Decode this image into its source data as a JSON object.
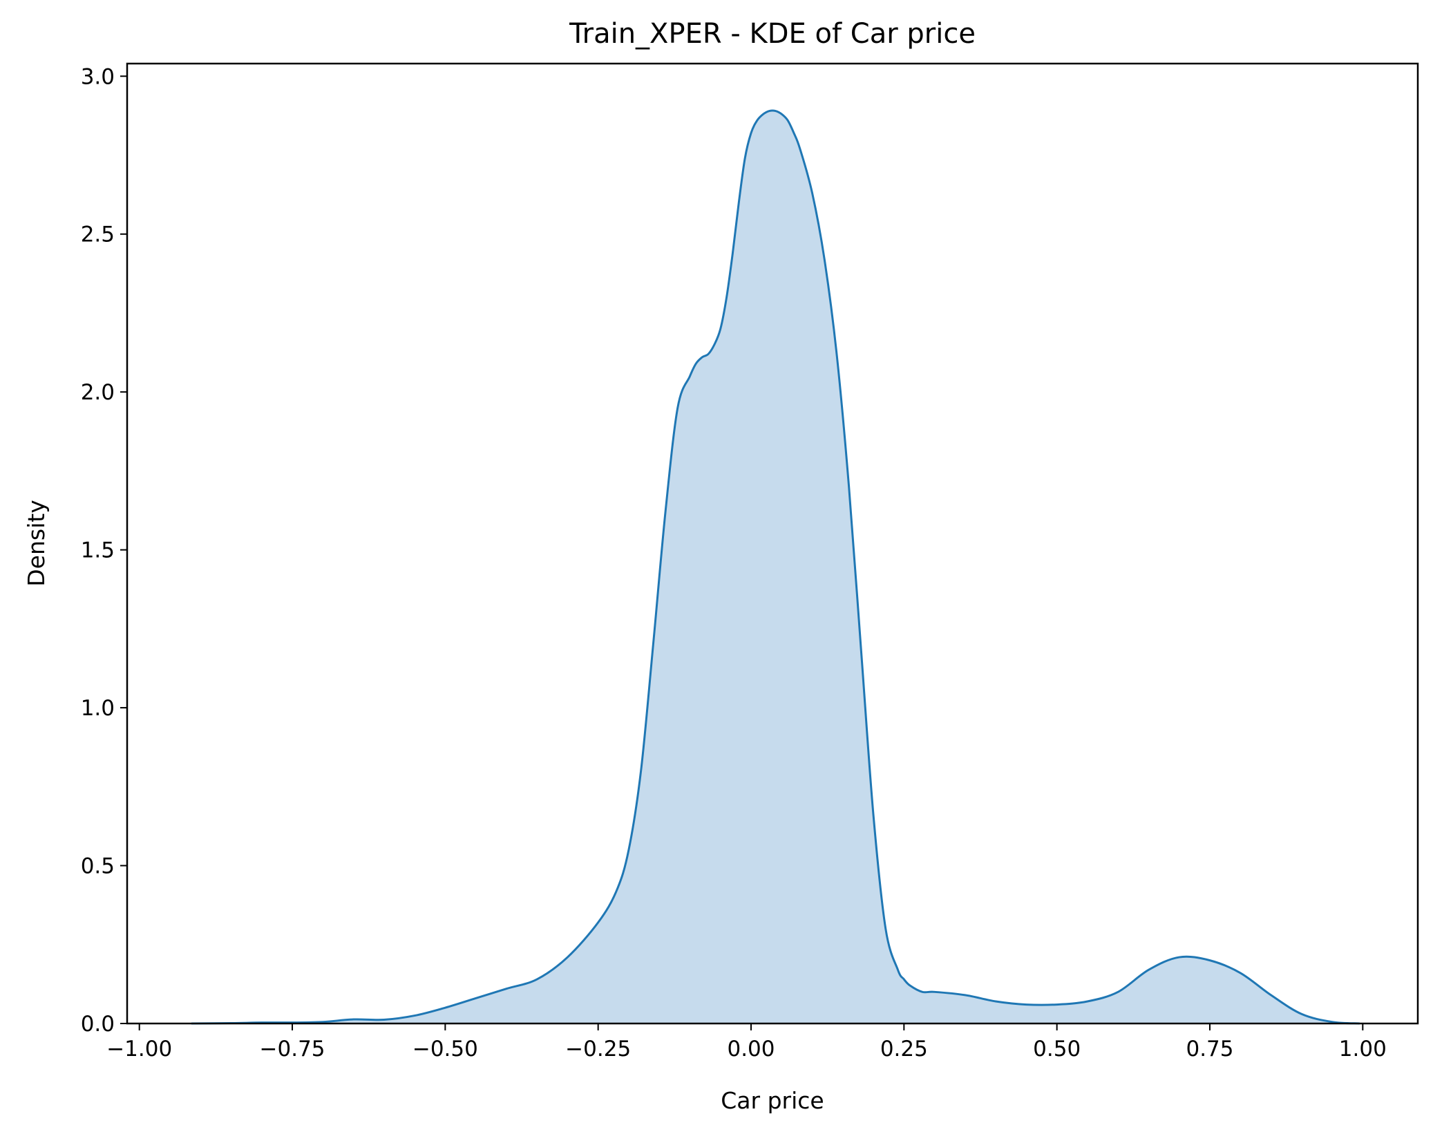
{
  "chart_data": {
    "type": "area",
    "title": "Train_XPER - KDE of Car price",
    "xlabel": "Car price",
    "ylabel": "Density",
    "xlim": [
      -1.02,
      1.09
    ],
    "ylim": [
      0,
      3.04
    ],
    "x_ticks": [
      {
        "value": -1.0,
        "label": "−1.00"
      },
      {
        "value": -0.75,
        "label": "−0.75"
      },
      {
        "value": -0.5,
        "label": "−0.50"
      },
      {
        "value": -0.25,
        "label": "−0.25"
      },
      {
        "value": 0.0,
        "label": "0.00"
      },
      {
        "value": 0.25,
        "label": "0.25"
      },
      {
        "value": 0.5,
        "label": "0.50"
      },
      {
        "value": 0.75,
        "label": "0.75"
      },
      {
        "value": 1.0,
        "label": "1.00"
      }
    ],
    "y_ticks": [
      {
        "value": 0.0,
        "label": "0.0"
      },
      {
        "value": 0.5,
        "label": "0.5"
      },
      {
        "value": 1.0,
        "label": "1.0"
      },
      {
        "value": 1.5,
        "label": "1.5"
      },
      {
        "value": 2.0,
        "label": "2.0"
      },
      {
        "value": 2.5,
        "label": "2.5"
      },
      {
        "value": 3.0,
        "label": "3.0"
      }
    ],
    "grid": false,
    "series": [
      {
        "color": "#1f77b4",
        "fill_color": "#c6dbed",
        "x": [
          -0.915,
          -0.85,
          -0.8,
          -0.75,
          -0.7,
          -0.65,
          -0.6,
          -0.55,
          -0.5,
          -0.45,
          -0.4,
          -0.35,
          -0.3,
          -0.25,
          -0.22,
          -0.2,
          -0.18,
          -0.16,
          -0.14,
          -0.12,
          -0.1,
          -0.09,
          -0.08,
          -0.07,
          -0.06,
          -0.05,
          -0.04,
          -0.03,
          -0.02,
          -0.01,
          0.0,
          0.01,
          0.02,
          0.03,
          0.04,
          0.05,
          0.06,
          0.07,
          0.08,
          0.1,
          0.12,
          0.14,
          0.16,
          0.18,
          0.2,
          0.22,
          0.24,
          0.25,
          0.26,
          0.28,
          0.3,
          0.35,
          0.4,
          0.45,
          0.5,
          0.55,
          0.6,
          0.65,
          0.7,
          0.75,
          0.8,
          0.85,
          0.9,
          0.95,
          0.995
        ],
        "y": [
          0.0,
          0.001,
          0.003,
          0.003,
          0.005,
          0.013,
          0.012,
          0.025,
          0.05,
          0.08,
          0.11,
          0.14,
          0.21,
          0.32,
          0.42,
          0.55,
          0.8,
          1.2,
          1.62,
          1.95,
          2.05,
          2.09,
          2.11,
          2.12,
          2.15,
          2.2,
          2.3,
          2.44,
          2.6,
          2.74,
          2.82,
          2.86,
          2.88,
          2.89,
          2.89,
          2.88,
          2.86,
          2.82,
          2.77,
          2.63,
          2.42,
          2.12,
          1.7,
          1.18,
          0.66,
          0.3,
          0.17,
          0.14,
          0.12,
          0.1,
          0.1,
          0.09,
          0.07,
          0.06,
          0.06,
          0.07,
          0.1,
          0.17,
          0.21,
          0.2,
          0.16,
          0.09,
          0.03,
          0.005,
          0.0
        ]
      }
    ]
  }
}
